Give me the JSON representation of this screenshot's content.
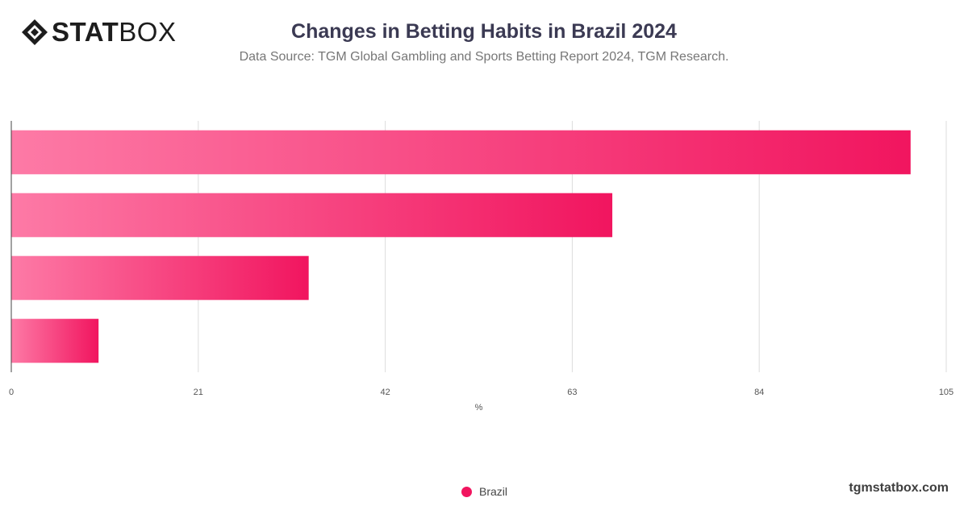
{
  "logo": {
    "text_bold": "STAT",
    "text_light": "BOX"
  },
  "title": "Changes in Betting Habits in Brazil 2024",
  "subtitle": "Data Source: TGM Global Gambling and Sports Betting Report 2024, TGM Research.",
  "watermark": "tgmstatbox.com",
  "colors": {
    "bar_light": "#fd7aa6",
    "bar_dark": "#f1155f",
    "grid": "#dddddd",
    "axis": "#444444",
    "title": "#3b3a53"
  },
  "chart_data": {
    "type": "bar",
    "orientation": "horizontal",
    "categories": [
      "",
      "",
      "",
      ""
    ],
    "series": [
      {
        "name": "Brazil",
        "values": [
          101,
          67.5,
          33.4,
          9.8
        ]
      }
    ],
    "xlabel": "%",
    "xlim": [
      0,
      105
    ],
    "xticks": [
      0,
      21,
      42,
      63,
      84,
      105
    ],
    "grid": true,
    "legend_position": "bottom"
  }
}
